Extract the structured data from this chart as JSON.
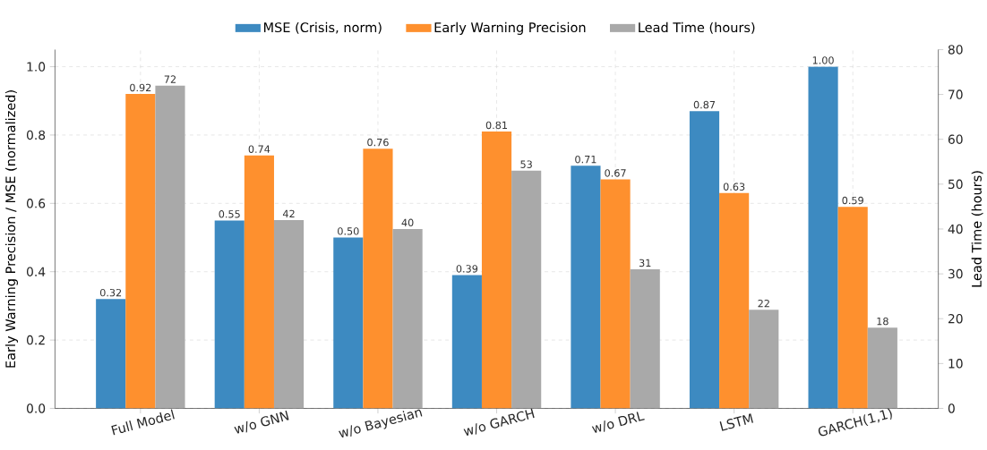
{
  "chart_data": {
    "type": "bar",
    "categories": [
      "Full Model",
      "w/o GNN",
      "w/o Bayesian",
      "w/o GARCH",
      "w/o DRL",
      "LSTM",
      "GARCH(1,1)"
    ],
    "series": [
      {
        "name": "MSE (Crisis, norm)",
        "color": "#3d8ac1",
        "values": [
          0.32,
          0.55,
          0.5,
          0.39,
          0.71,
          0.87,
          1.0
        ],
        "value_labels": [
          "0.32",
          "0.55",
          "0.50",
          "0.39",
          "0.71",
          "0.87",
          "1.00"
        ]
      },
      {
        "name": "Early Warning Precision",
        "color": "#fe902e",
        "values": [
          0.92,
          0.74,
          0.76,
          0.81,
          0.67,
          0.63,
          0.59
        ],
        "value_labels": [
          "0.92",
          "0.74",
          "0.76",
          "0.81",
          "0.67",
          "0.63",
          "0.59"
        ]
      },
      {
        "name": "Lead Time (hours)",
        "color": "#a9a9a9",
        "axis": "y2",
        "values": [
          72,
          42,
          40,
          53,
          31,
          22,
          18
        ],
        "value_labels": [
          "72",
          "42",
          "40",
          "53",
          "31",
          "22",
          "18"
        ]
      }
    ],
    "ylabel": "Early Warning Precision / MSE (normalized)",
    "y2label": "Lead Time (hours)",
    "ylim": [
      0,
      1.05
    ],
    "yticks": [
      {
        "value": 0,
        "label": "0.0"
      },
      {
        "value": 0.2,
        "label": "0.2"
      },
      {
        "value": 0.4,
        "label": "0.4"
      },
      {
        "value": 0.6,
        "label": "0.6"
      },
      {
        "value": 0.8,
        "label": "0.8"
      },
      {
        "value": 1.0,
        "label": "1.0"
      }
    ],
    "y2lim": [
      0,
      80
    ],
    "y2ticks": [
      0,
      10,
      20,
      30,
      40,
      50,
      60,
      70,
      80
    ],
    "grid": true,
    "legend": "top"
  }
}
